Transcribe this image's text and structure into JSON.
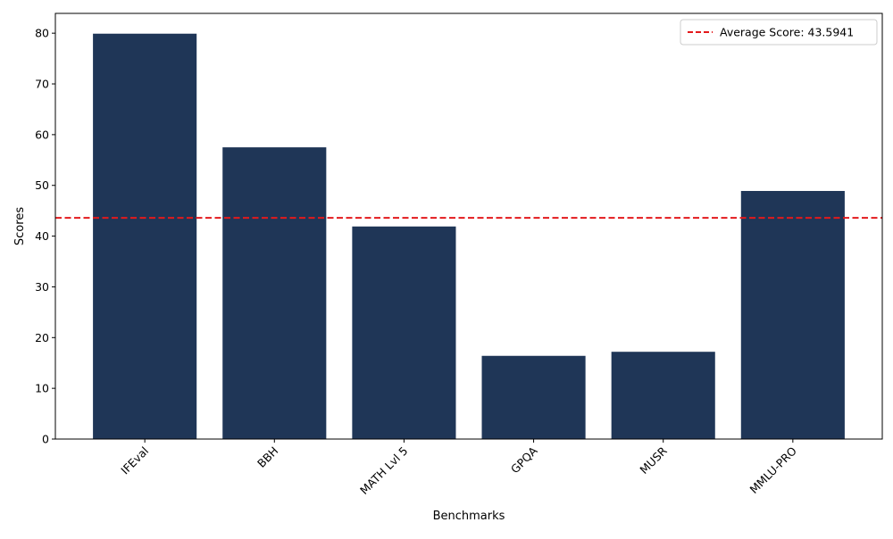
{
  "chart_data": {
    "type": "bar",
    "title": "",
    "xlabel": "Benchmarks",
    "ylabel": "Scores",
    "categories": [
      "IFEval",
      "BBH",
      "MATH Lvl 5",
      "GPQA",
      "MUSR",
      "MMLU-PRO"
    ],
    "values": [
      79.9,
      57.5,
      41.9,
      16.4,
      17.2,
      48.9
    ],
    "ylim": [
      0,
      83.9
    ],
    "yticks": [
      0,
      10,
      20,
      30,
      40,
      50,
      60,
      70,
      80
    ],
    "xtick_rotation_deg": 45,
    "bar_color": "#1f3657",
    "grid": false,
    "average_line": {
      "value": 43.5941,
      "label": "Average Score: 43.5941",
      "color": "#e31a1c",
      "style": "dashed"
    },
    "legend": {
      "location": "top-right",
      "entries": [
        "Average Score: 43.5941"
      ]
    }
  }
}
